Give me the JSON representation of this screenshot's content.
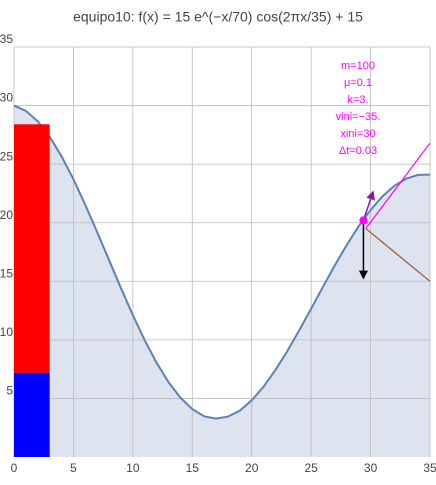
{
  "chart_data": {
    "type": "area",
    "title": "equipo10: f(x) = 15 e^(−x/70) cos(2πx/35) + 15",
    "x": [
      0,
      1,
      2,
      3,
      4,
      5,
      6,
      7,
      8,
      9,
      10,
      11,
      12,
      13,
      14,
      15,
      16,
      17,
      18,
      19,
      20,
      21,
      22,
      23,
      24,
      25,
      26,
      27,
      28,
      29,
      30,
      31,
      32,
      33,
      34,
      35
    ],
    "series": [
      {
        "color": "#5e81b5",
        "fill": "#dde3ef",
        "values": [
          30,
          29.55,
          28.65,
          27.34,
          25.67,
          23.71,
          21.52,
          19.19,
          16.8,
          14.41,
          12.11,
          9.96,
          8.04,
          6.39,
          5.06,
          4.09,
          3.47,
          3.28,
          3.45,
          3.96,
          4.84,
          6.01,
          7.43,
          9.05,
          10.82,
          12.66,
          14.54,
          16.37,
          18.11,
          19.7,
          21.09,
          22.25,
          23.15,
          23.76,
          24.08,
          24.1
        ]
      }
    ],
    "bar": {
      "x": [
        0,
        3
      ],
      "segments": [
        {
          "color": "#0000ff",
          "value": 7.2
        },
        {
          "color": "#ff0000",
          "value": 21.2
        }
      ]
    },
    "point": {
      "x": 29.4,
      "y": 20.2,
      "color": "#ff00ff"
    },
    "lines": [
      {
        "color": "#ff00ff",
        "x": [
          29.6,
          35
        ],
        "y": [
          19.5,
          26.8
        ]
      },
      {
        "color": "#a0522d",
        "x": [
          29.6,
          35
        ],
        "y": [
          19.5,
          15.0
        ]
      }
    ],
    "arrows": [
      {
        "color": "#000000",
        "x": [
          29.4,
          29.4
        ],
        "y": [
          20.2,
          15.3
        ]
      },
      {
        "color": "#7a1fa2",
        "x": [
          29.4,
          30.2
        ],
        "y": [
          20.2,
          22.6
        ]
      }
    ],
    "annotations": [
      "m=100",
      "μ=0.1",
      "k=3.",
      "vini=−35.",
      "xini=30",
      "Δt=0.03"
    ],
    "annotation_color": "#ff00ff",
    "xlim": [
      0,
      35
    ],
    "ylim": [
      0,
      35
    ],
    "xticks": [
      0,
      5,
      10,
      15,
      20,
      25,
      30,
      35
    ],
    "yticks": [
      5,
      10,
      15,
      20,
      25,
      30,
      35
    ],
    "grid": true
  }
}
